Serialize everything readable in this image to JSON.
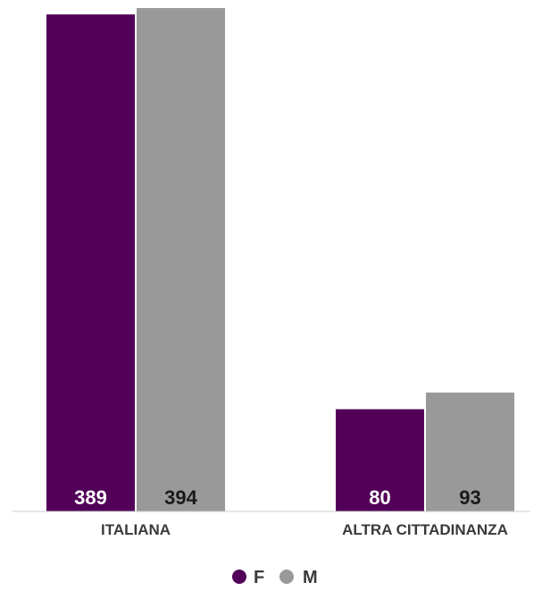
{
  "chart_data": {
    "type": "bar",
    "categories": [
      "ITALIANA",
      "ALTRA CITTADINANZA"
    ],
    "series": [
      {
        "name": "F",
        "values": [
          389,
          80
        ],
        "color": "#520058",
        "label_color": "#ffffff"
      },
      {
        "name": "M",
        "values": [
          394,
          93
        ],
        "color": "#999999",
        "label_color": "#1a1a1a"
      }
    ],
    "ylim": [
      0,
      394
    ],
    "grid": false,
    "legend_position": "bottom-center",
    "axis_color": "#cccccc"
  }
}
